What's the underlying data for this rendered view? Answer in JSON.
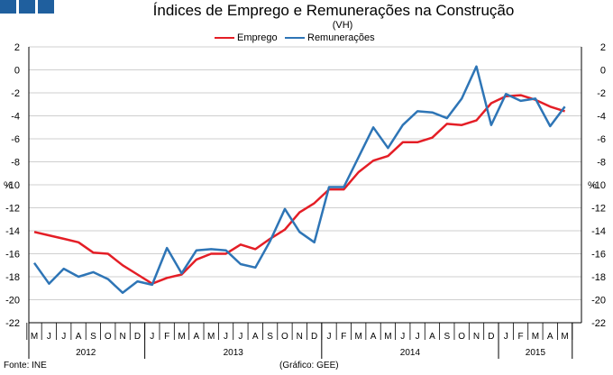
{
  "header": {
    "title": "Índices de Emprego e Remunerações na Construção",
    "subtitle": "(VH)"
  },
  "footer": {
    "source": "Fonte: INE",
    "credit": "(Gráfico: GEE)"
  },
  "colors": {
    "emprego": "#e41e26",
    "remuneracoes": "#2e75b6",
    "brand": "#1f5f9e",
    "grid": "#bfbfbf"
  },
  "chart_data": {
    "type": "line",
    "title": "Índices de Emprego e Remunerações na Construção",
    "subtitle": "(VH)",
    "ylabel_left": "%",
    "ylabel_right": "%",
    "ylim": [
      -22,
      2
    ],
    "yticks": [
      2,
      0,
      -2,
      -4,
      -6,
      -8,
      -10,
      -12,
      -14,
      -16,
      -18,
      -20,
      -22
    ],
    "grid": true,
    "legend_position": "top",
    "months": [
      "M",
      "J",
      "J",
      "A",
      "S",
      "O",
      "N",
      "D",
      "J",
      "F",
      "M",
      "A",
      "M",
      "J",
      "J",
      "A",
      "S",
      "O",
      "N",
      "D",
      "J",
      "F",
      "M",
      "A",
      "M",
      "J",
      "J",
      "A",
      "S",
      "O",
      "N",
      "D",
      "J",
      "F",
      "M",
      "A",
      "M"
    ],
    "years": [
      {
        "label": "2012",
        "start": 0,
        "end": 7
      },
      {
        "label": "2013",
        "start": 8,
        "end": 19
      },
      {
        "label": "2014",
        "start": 20,
        "end": 31
      },
      {
        "label": "2015",
        "start": 32,
        "end": 36
      }
    ],
    "series": [
      {
        "name": "Emprego",
        "color": "#e41e26",
        "values": [
          -14.1,
          -14.4,
          -14.7,
          -15.0,
          -15.9,
          -16.0,
          -17.0,
          -17.8,
          -18.6,
          -18.1,
          -17.8,
          -16.5,
          -16.0,
          -16.0,
          -15.2,
          -15.6,
          -14.7,
          -13.9,
          -12.4,
          -11.6,
          -10.4,
          -10.4,
          -8.9,
          -7.9,
          -7.5,
          -6.3,
          -6.3,
          -5.9,
          -4.7,
          -4.8,
          -4.4,
          -2.9,
          -2.3,
          -2.2,
          -2.6,
          -3.2,
          -3.6
        ]
      },
      {
        "name": "Remunerações",
        "color": "#2e75b6",
        "values": [
          -16.8,
          -18.6,
          -17.3,
          -18.0,
          -17.6,
          -18.2,
          -19.4,
          -18.4,
          -18.7,
          -15.5,
          -17.7,
          -15.7,
          -15.6,
          -15.7,
          -16.9,
          -17.2,
          -14.9,
          -12.1,
          -14.1,
          -15.0,
          -10.2,
          -10.2,
          -7.6,
          -5.0,
          -6.8,
          -4.8,
          -3.6,
          -3.7,
          -4.2,
          -2.5,
          0.3,
          -4.8,
          -2.1,
          -2.7,
          -2.5,
          -4.9,
          -3.2
        ]
      }
    ]
  }
}
